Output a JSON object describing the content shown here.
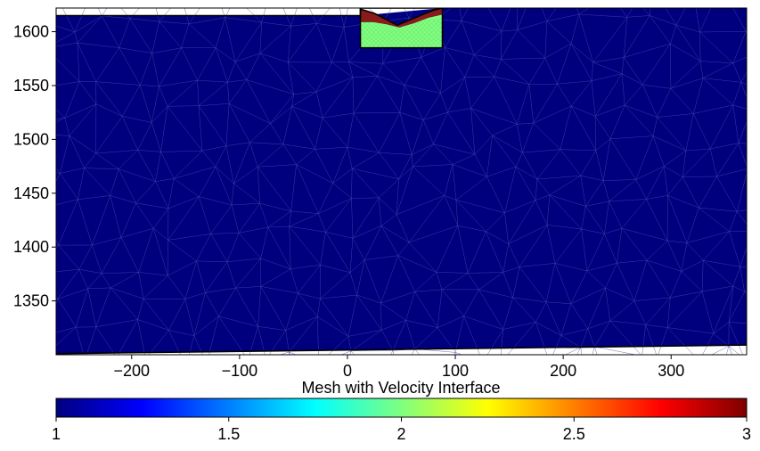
{
  "chart_data": {
    "type": "heatmap",
    "title": "",
    "xlabel": "",
    "ylabel": "",
    "xlim": [
      -270,
      370
    ],
    "ylim": [
      1300,
      1622
    ],
    "xticks": [
      -200,
      -100,
      0,
      100,
      200,
      300
    ],
    "yticks": [
      1350,
      1400,
      1450,
      1500,
      1550,
      1600
    ],
    "background_value": 1,
    "regions": [
      {
        "name": "",
        "value": 2,
        "x_range": [
          12,
          88
        ],
        "y_range": [
          1585,
          1609
        ]
      },
      {
        "name": "",
        "value": 3,
        "x_range": [
          12,
          88
        ],
        "y_range": [
          1604,
          1621
        ]
      }
    ],
    "upper_region_boundary": [
      {
        "x": -270,
        "y": 1615
      },
      {
        "x": 12,
        "y": 1615
      },
      {
        "x": 12,
        "y": 1621
      },
      {
        "x": 25,
        "y": 1617
      },
      {
        "x": 35,
        "y": 1612
      },
      {
        "x": 46,
        "y": 1606
      },
      {
        "x": 58,
        "y": 1611
      },
      {
        "x": 70,
        "y": 1616
      },
      {
        "x": 80,
        "y": 1620
      },
      {
        "x": 88,
        "y": 1622
      }
    ],
    "bottom_boundary": [
      {
        "x": -270,
        "y": 1301
      },
      {
        "x": 370,
        "y": 1309
      }
    ],
    "colorbar": {
      "label": "Mesh with Velocity Interface",
      "range": [
        1,
        3
      ],
      "ticks": [
        "1",
        "1.5",
        "2",
        "2.5",
        "3"
      ],
      "colormap": [
        "#00007f",
        "#0000ff",
        "#007fff",
        "#00ffff",
        "#7fff7f",
        "#ffff00",
        "#ff7f00",
        "#ff0000",
        "#7f0000"
      ],
      "orientation": "horizontal"
    },
    "colors": {
      "background_mesh": "#00007f",
      "mid_region": "#80ff80",
      "high_region": "#8a1b1b",
      "mesh_lines": "#4a4aa8"
    }
  }
}
